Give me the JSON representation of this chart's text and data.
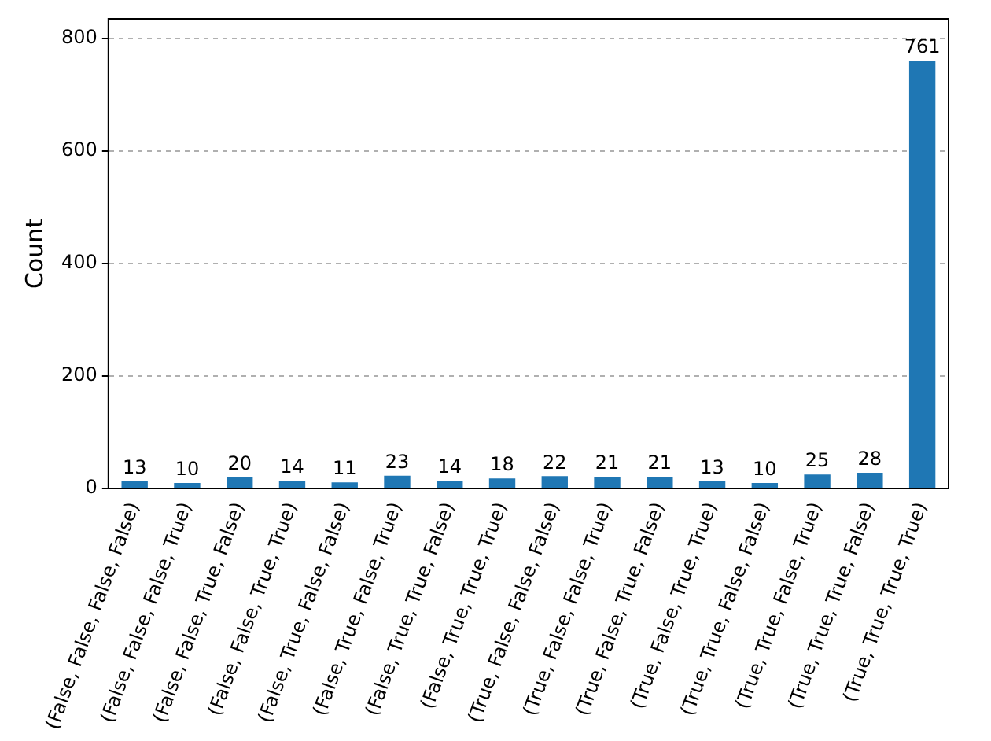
{
  "chart_data": {
    "type": "bar",
    "ylabel": "Count",
    "categories": [
      "(False, False, False, False)",
      "(False, False, False, True)",
      "(False, False, True, False)",
      "(False, False, True, True)",
      "(False, True, False, False)",
      "(False, True, False, True)",
      "(False, True, True, False)",
      "(False, True, True, True)",
      "(True, False, False, False)",
      "(True, False, False, True)",
      "(True, False, True, False)",
      "(True, False, True, True)",
      "(True, True, False, False)",
      "(True, True, False, True)",
      "(True, True, True, False)",
      "(True, True, True, True)"
    ],
    "values": [
      13,
      10,
      20,
      14,
      11,
      23,
      14,
      18,
      22,
      21,
      21,
      13,
      10,
      25,
      28,
      761
    ],
    "color": "#1f77b4",
    "ylim": [
      0,
      835
    ],
    "yticks": [
      0,
      200,
      400,
      600,
      800
    ],
    "grid": "y",
    "data_labels": true,
    "legend": false
  }
}
